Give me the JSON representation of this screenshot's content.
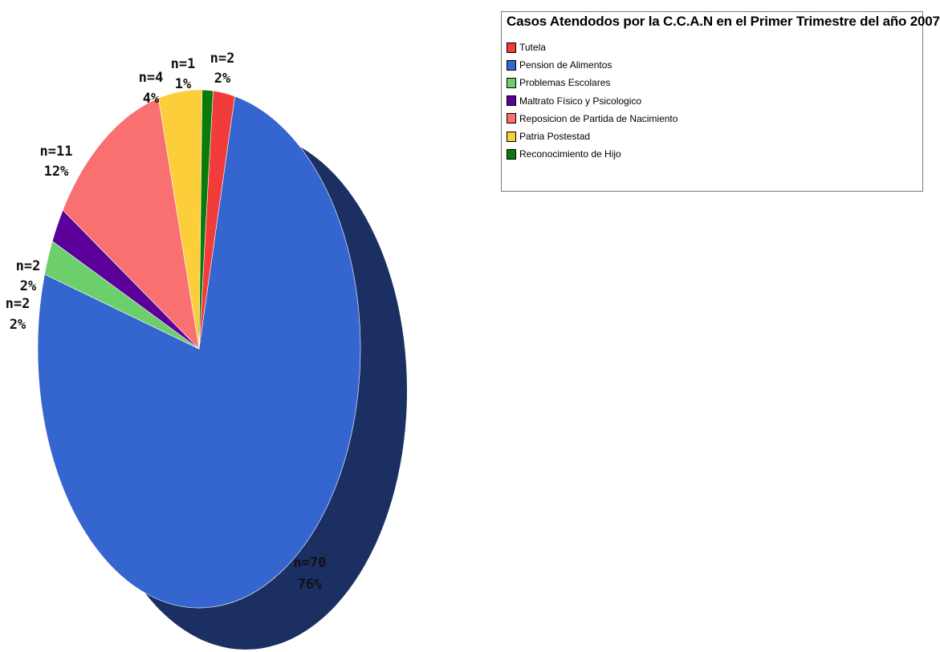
{
  "chart_data": {
    "type": "pie",
    "title": "Casos Atendodos por la C.C.A.N en el Primer Trimestre del año 2007",
    "legend_position": "top-right",
    "slices": [
      {
        "name": "Tutela",
        "value": 2,
        "count_label": "n=2",
        "percent_label": "2%",
        "color": "#f23b3b"
      },
      {
        "name": "Pension de Alimentos",
        "value": 70,
        "count_label": "n=70",
        "percent_label": "76%",
        "color": "#3566cf"
      },
      {
        "name": "Problemas Escolares",
        "value": 2,
        "count_label": "n=2",
        "percent_label": "2%",
        "color": "#6ccf6c"
      },
      {
        "name": "Maltrato Físico y Psicologico",
        "value": 2,
        "count_label": "n=2",
        "percent_label": "2%",
        "color": "#5b0099"
      },
      {
        "name": "Reposicion de Partida de Nacimiento",
        "value": 11,
        "count_label": "n=11",
        "percent_label": "12%",
        "color": "#f87070"
      },
      {
        "name": "Patria Postestad",
        "value": 4,
        "count_label": "n=4",
        "percent_label": "4%",
        "color": "#fccf3a"
      },
      {
        "name": "Reconocimiento de Hijo",
        "value": 1,
        "count_label": "n=1",
        "percent_label": "1%",
        "color": "#0a7a0a"
      }
    ],
    "side_color": "#1c2f62"
  }
}
